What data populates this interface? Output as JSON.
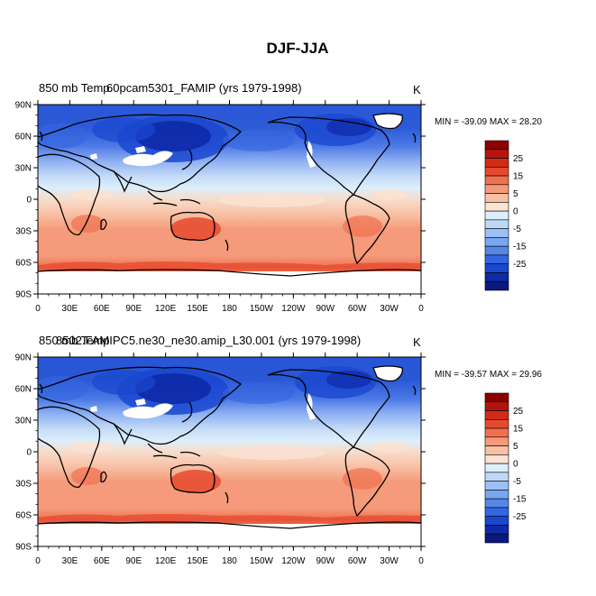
{
  "figure_title": "DJF-JJA",
  "panels": [
    {
      "title_left_a": "850 mb Temp",
      "title_left_b": "60pcam5301_FAMIP (yrs 1979-1998)",
      "units": "K",
      "stats": "MIN = -39.09 MAX =  28.20"
    },
    {
      "title_left_a": "850 mb Temp",
      "title_left_b": "8502.FAMIPC5.ne30_ne30.amip_L30.001 (yrs 1979-1998)",
      "units": "K",
      "stats": "MIN = -39.57 MAX =  29.96"
    }
  ],
  "axes": {
    "y_ticks": [
      "90N",
      "60N",
      "30N",
      "0",
      "30S",
      "60S",
      "90S"
    ],
    "x_ticks": [
      "0",
      "30E",
      "60E",
      "90E",
      "120E",
      "150E",
      "180",
      "150W",
      "120W",
      "90W",
      "60W",
      "30W",
      "0"
    ]
  },
  "colorbar": {
    "labels": [
      "25",
      "15",
      "5",
      "0",
      "-5",
      "-15",
      "-25"
    ],
    "colors": [
      "#8c0000",
      "#b5140d",
      "#d12b16",
      "#e64a2e",
      "#f07050",
      "#f59a7a",
      "#f8c0a4",
      "#fbe2d2",
      "#dceefc",
      "#bed9f8",
      "#9dc0f5",
      "#7aa5f0",
      "#5586ea",
      "#3366e0",
      "#1a47cf",
      "#0d2aa8",
      "#0a1980"
    ]
  },
  "chart_data": {
    "type": "heatmap",
    "title": "DJF-JJA",
    "variable": "850 mb Temp",
    "units": "K",
    "panels": [
      {
        "case": "60pcam5301_FAMIP (yrs 1979-1998)",
        "min": -39.09,
        "max": 28.2
      },
      {
        "case": "8502.FAMIPC5.ne30_ne30.amip_L30.001 (yrs 1979-1998)",
        "min": -39.57,
        "max": 29.96
      }
    ],
    "contour_levels": [
      -35,
      -30,
      -25,
      -20,
      -15,
      -10,
      -5,
      -2,
      0,
      2,
      5,
      10,
      15,
      20,
      25,
      30
    ],
    "x_range": [
      0,
      360
    ],
    "y_range": [
      -90,
      90
    ],
    "colorbar_ticks": [
      25,
      15,
      5,
      0,
      -5,
      -15,
      -25
    ]
  }
}
